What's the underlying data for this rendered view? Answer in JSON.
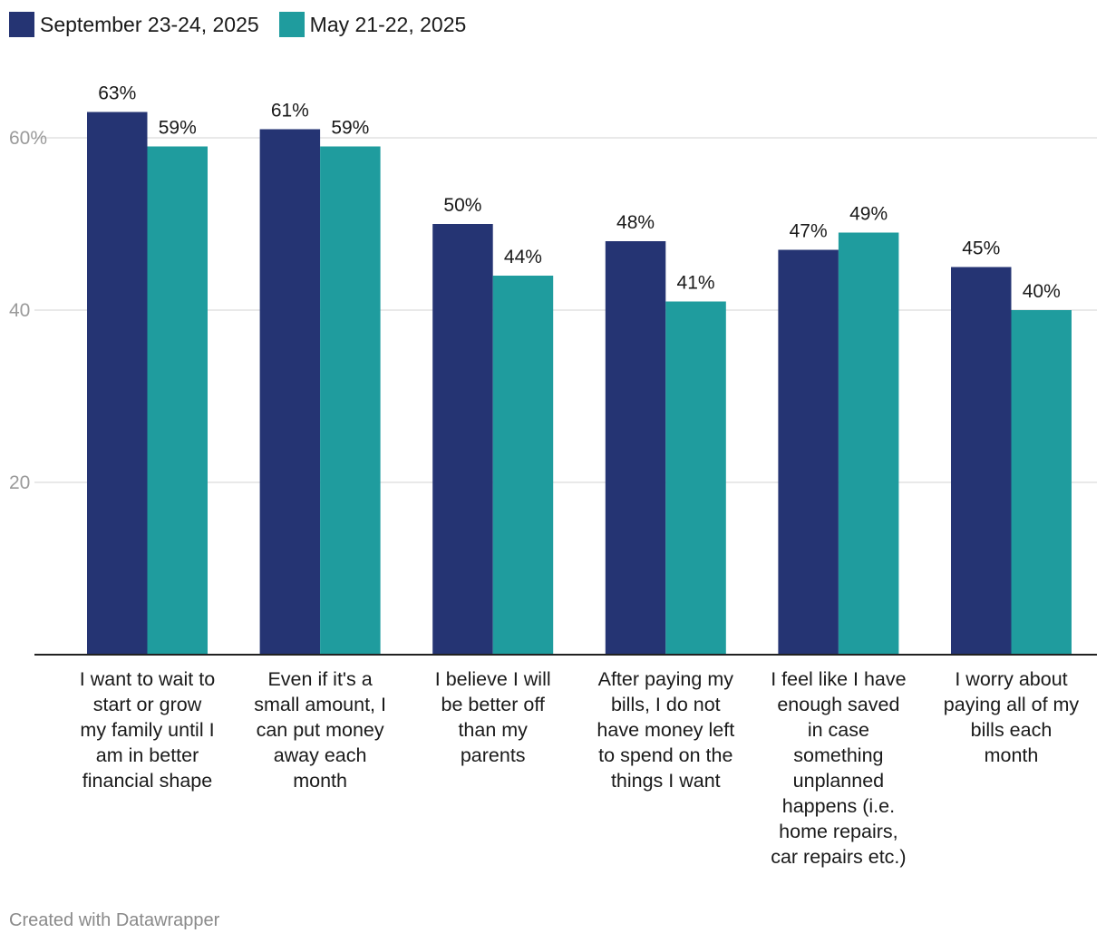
{
  "chart_data": {
    "type": "bar",
    "title": "",
    "xlabel": "",
    "ylabel": "",
    "ylim": [
      0,
      70
    ],
    "grid": true,
    "yticks": [
      {
        "value": 20,
        "label": "20"
      },
      {
        "value": 40,
        "label": "40"
      },
      {
        "value": 60,
        "label": "60%"
      }
    ],
    "categories": [
      "I want to wait to start or grow my family until I am in better financial shape",
      "Even if it's a small amount, I can put money away each month",
      "I believe I will be better off than my parents",
      "After paying my bills, I do not have money left to spend on the things I want",
      "I feel like I have enough saved in case something unplanned happens (i.e. home repairs, car repairs etc.)",
      "I worry about paying all of my bills each month"
    ],
    "category_lines": [
      [
        "I want to wait to",
        "start or grow",
        "my family until I",
        "am in better",
        "financial shape"
      ],
      [
        "Even if it's a",
        "small amount, I",
        "can put money",
        "away each",
        "month"
      ],
      [
        "I believe I will",
        "be better off",
        "than my",
        "parents"
      ],
      [
        "After paying my",
        "bills, I do not",
        "have money left",
        "to spend on the",
        "things I want"
      ],
      [
        "I feel like I have",
        "enough saved",
        "in case",
        "something",
        "unplanned",
        "happens (i.e.",
        "home repairs,",
        "car repairs etc.)"
      ],
      [
        "I worry about",
        "paying all of my",
        "bills each",
        "month"
      ]
    ],
    "series": [
      {
        "name": "September 23-24, 2025",
        "color": "#253473",
        "values": [
          63,
          61,
          50,
          48,
          47,
          45
        ],
        "labels": [
          "63%",
          "61%",
          "50%",
          "48%",
          "47%",
          "45%"
        ]
      },
      {
        "name": "May 21-22, 2025",
        "color": "#1f9c9e",
        "values": [
          59,
          59,
          44,
          41,
          49,
          40
        ],
        "labels": [
          "59%",
          "59%",
          "44%",
          "41%",
          "49%",
          "40%"
        ]
      }
    ],
    "legend": "top-left"
  },
  "footer": {
    "credit": "Created with Datawrapper"
  }
}
